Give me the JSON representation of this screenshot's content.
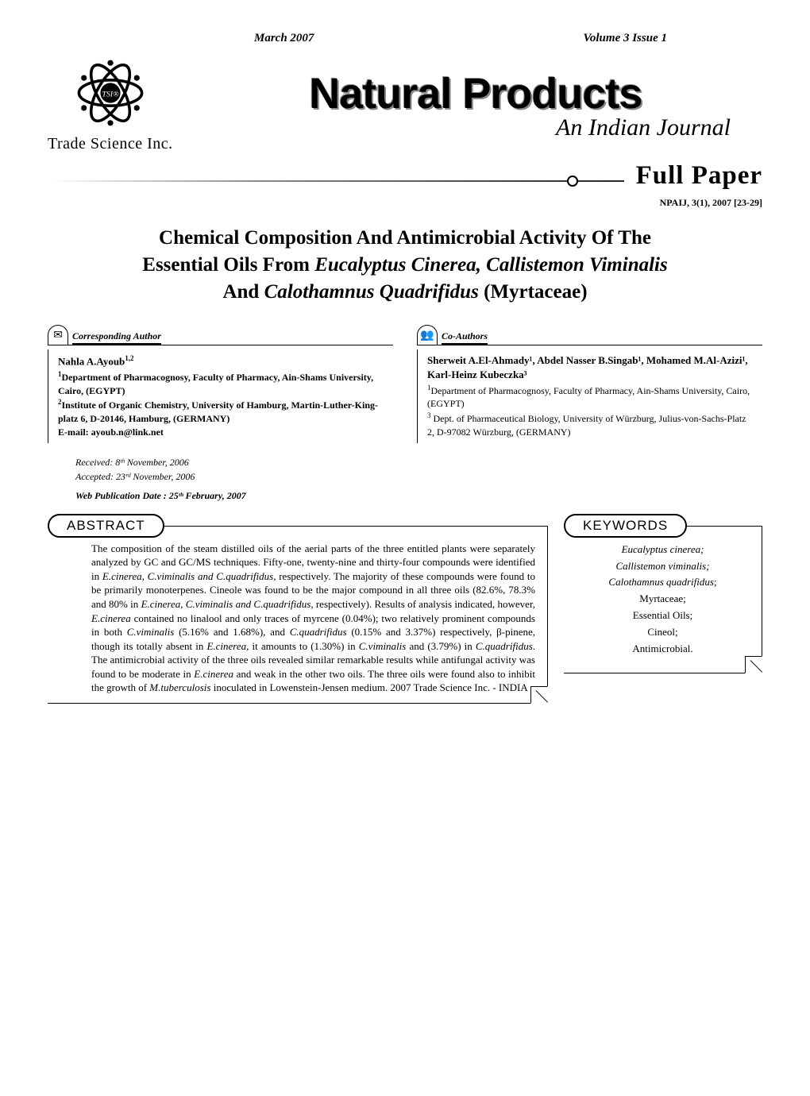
{
  "top": {
    "issue_date": "March 2007",
    "volume": "Volume 3 Issue 1"
  },
  "masthead": {
    "journal_title": "Natural Products",
    "journal_subtitle": "An Indian Journal",
    "publisher": "Trade Science Inc."
  },
  "section": {
    "label": "Full Paper",
    "doi": "NPAIJ, 3(1), 2007 [23-29]"
  },
  "article": {
    "title_line1": "Chemical Composition And Antimicrobial Activity Of The",
    "title_line2_a": "Essential Oils From ",
    "title_line2_b": "Eucalyptus Cinerea, Callistemon Viminalis",
    "title_line3_a": "And ",
    "title_line3_b": "Calothamnus Quadrifidus",
    "title_line3_c": " (Myrtaceae)"
  },
  "corresponding": {
    "header": "Corresponding Author",
    "name": "Nahla A.Ayoub",
    "name_sup": "1,2",
    "aff1_sup": "1",
    "aff1": "Department of Pharmacognosy, Faculty of Pharmacy, Ain-Shams University, Cairo, (EGYPT)",
    "aff2_sup": "2",
    "aff2": "Institute of Organic Chemistry, University of Hamburg, Martin-Luther-King-platz 6, D-20146, Hamburg, (GERMANY)",
    "email": "E-mail: ayoub.n@link.net"
  },
  "coauthors": {
    "header": "Co-Authors",
    "names": "Sherweit A.El-Ahmady¹, Abdel Nasser B.Singab¹, Mohamed M.Al-Azizi¹, Karl-Heinz Kubeczka³",
    "aff1_sup": "1",
    "aff1": "Department of Pharmacognosy, Faculty of Pharmacy, Ain-Shams University, Cairo, (EGYPT)",
    "aff3_sup": "3",
    "aff3": " Dept. of Pharmaceutical Biology, University of  Würzburg, Julius-von-Sachs-Platz 2, D-97082 Würzburg, (GERMANY)"
  },
  "dates": {
    "received": "Received: 8ᵗʰ November, 2006",
    "accepted": "Accepted: 23ʳᵈ November, 2006",
    "webpub": "Web Publication Date : 25ᵗʰ February, 2007"
  },
  "abstract": {
    "label": "ABSTRACT",
    "text_1": "The composition of the steam distilled oils of the aerial parts of the three entitled plants were separately analyzed by GC and GC/MS techniques. Fifty-one, twenty-nine and thirty-four compounds were identified in ",
    "it_1": "E.cinerea, C.viminalis and C.quadrifidus",
    "text_2": ", respectively.  The majority of these compounds were found to be primarily monoterpenes. Cineole was found to be the major compound in all three oils (82.6%, 78.3% and 80% in ",
    "it_2": "E.cinerea, C.viminalis and C.quadrifidus",
    "text_3": ", respectively).  Results of analysis indicated, however, ",
    "it_3": "E.cinerea",
    "text_4": " contained no linalool and only traces of myrcene (0.04%); two relatively prominent compounds in both ",
    "it_4": "C.viminalis",
    "text_5": " (5.16% and 1.68%), and ",
    "it_5": "C.quadrifidus",
    "text_6": " (0.15% and 3.37%) respectively, β-pinene, though its totally absent in ",
    "it_6": "E.cinerea",
    "text_7": ", it amounts to (1.30%) in ",
    "it_7": "C.viminalis",
    "text_8": " and (3.79%) in ",
    "it_8": "C.quadrifidus",
    "text_9": ". The antimicrobial activity of the three oils revealed similar remarkable results while antifungal activity was found to be moderate in ",
    "it_9": "E.cinerea",
    "text_10": " and weak in the other two oils.  The three oils were found also to inhibit the growth of ",
    "it_10": "M.tuberculosis",
    "text_11": " inoculated in Lowenstein-Jensen medium.          ",
    "copyright": " 2007 Trade Science Inc. - INDIA"
  },
  "keywords": {
    "label": "KEYWORDS",
    "items": [
      {
        "t": "Eucalyptus cinerea;",
        "it": true
      },
      {
        "t": "Callistemon viminalis;",
        "it": true
      },
      {
        "t": "Calothamnus quadrifidus",
        "it": true,
        "suffix": ";"
      },
      {
        "t": "Myrtaceae;",
        "it": false
      },
      {
        "t": "Essential Oils;",
        "it": false
      },
      {
        "t": "Cineol;",
        "it": false
      },
      {
        "t": "Antimicrobial.",
        "it": false
      }
    ]
  }
}
